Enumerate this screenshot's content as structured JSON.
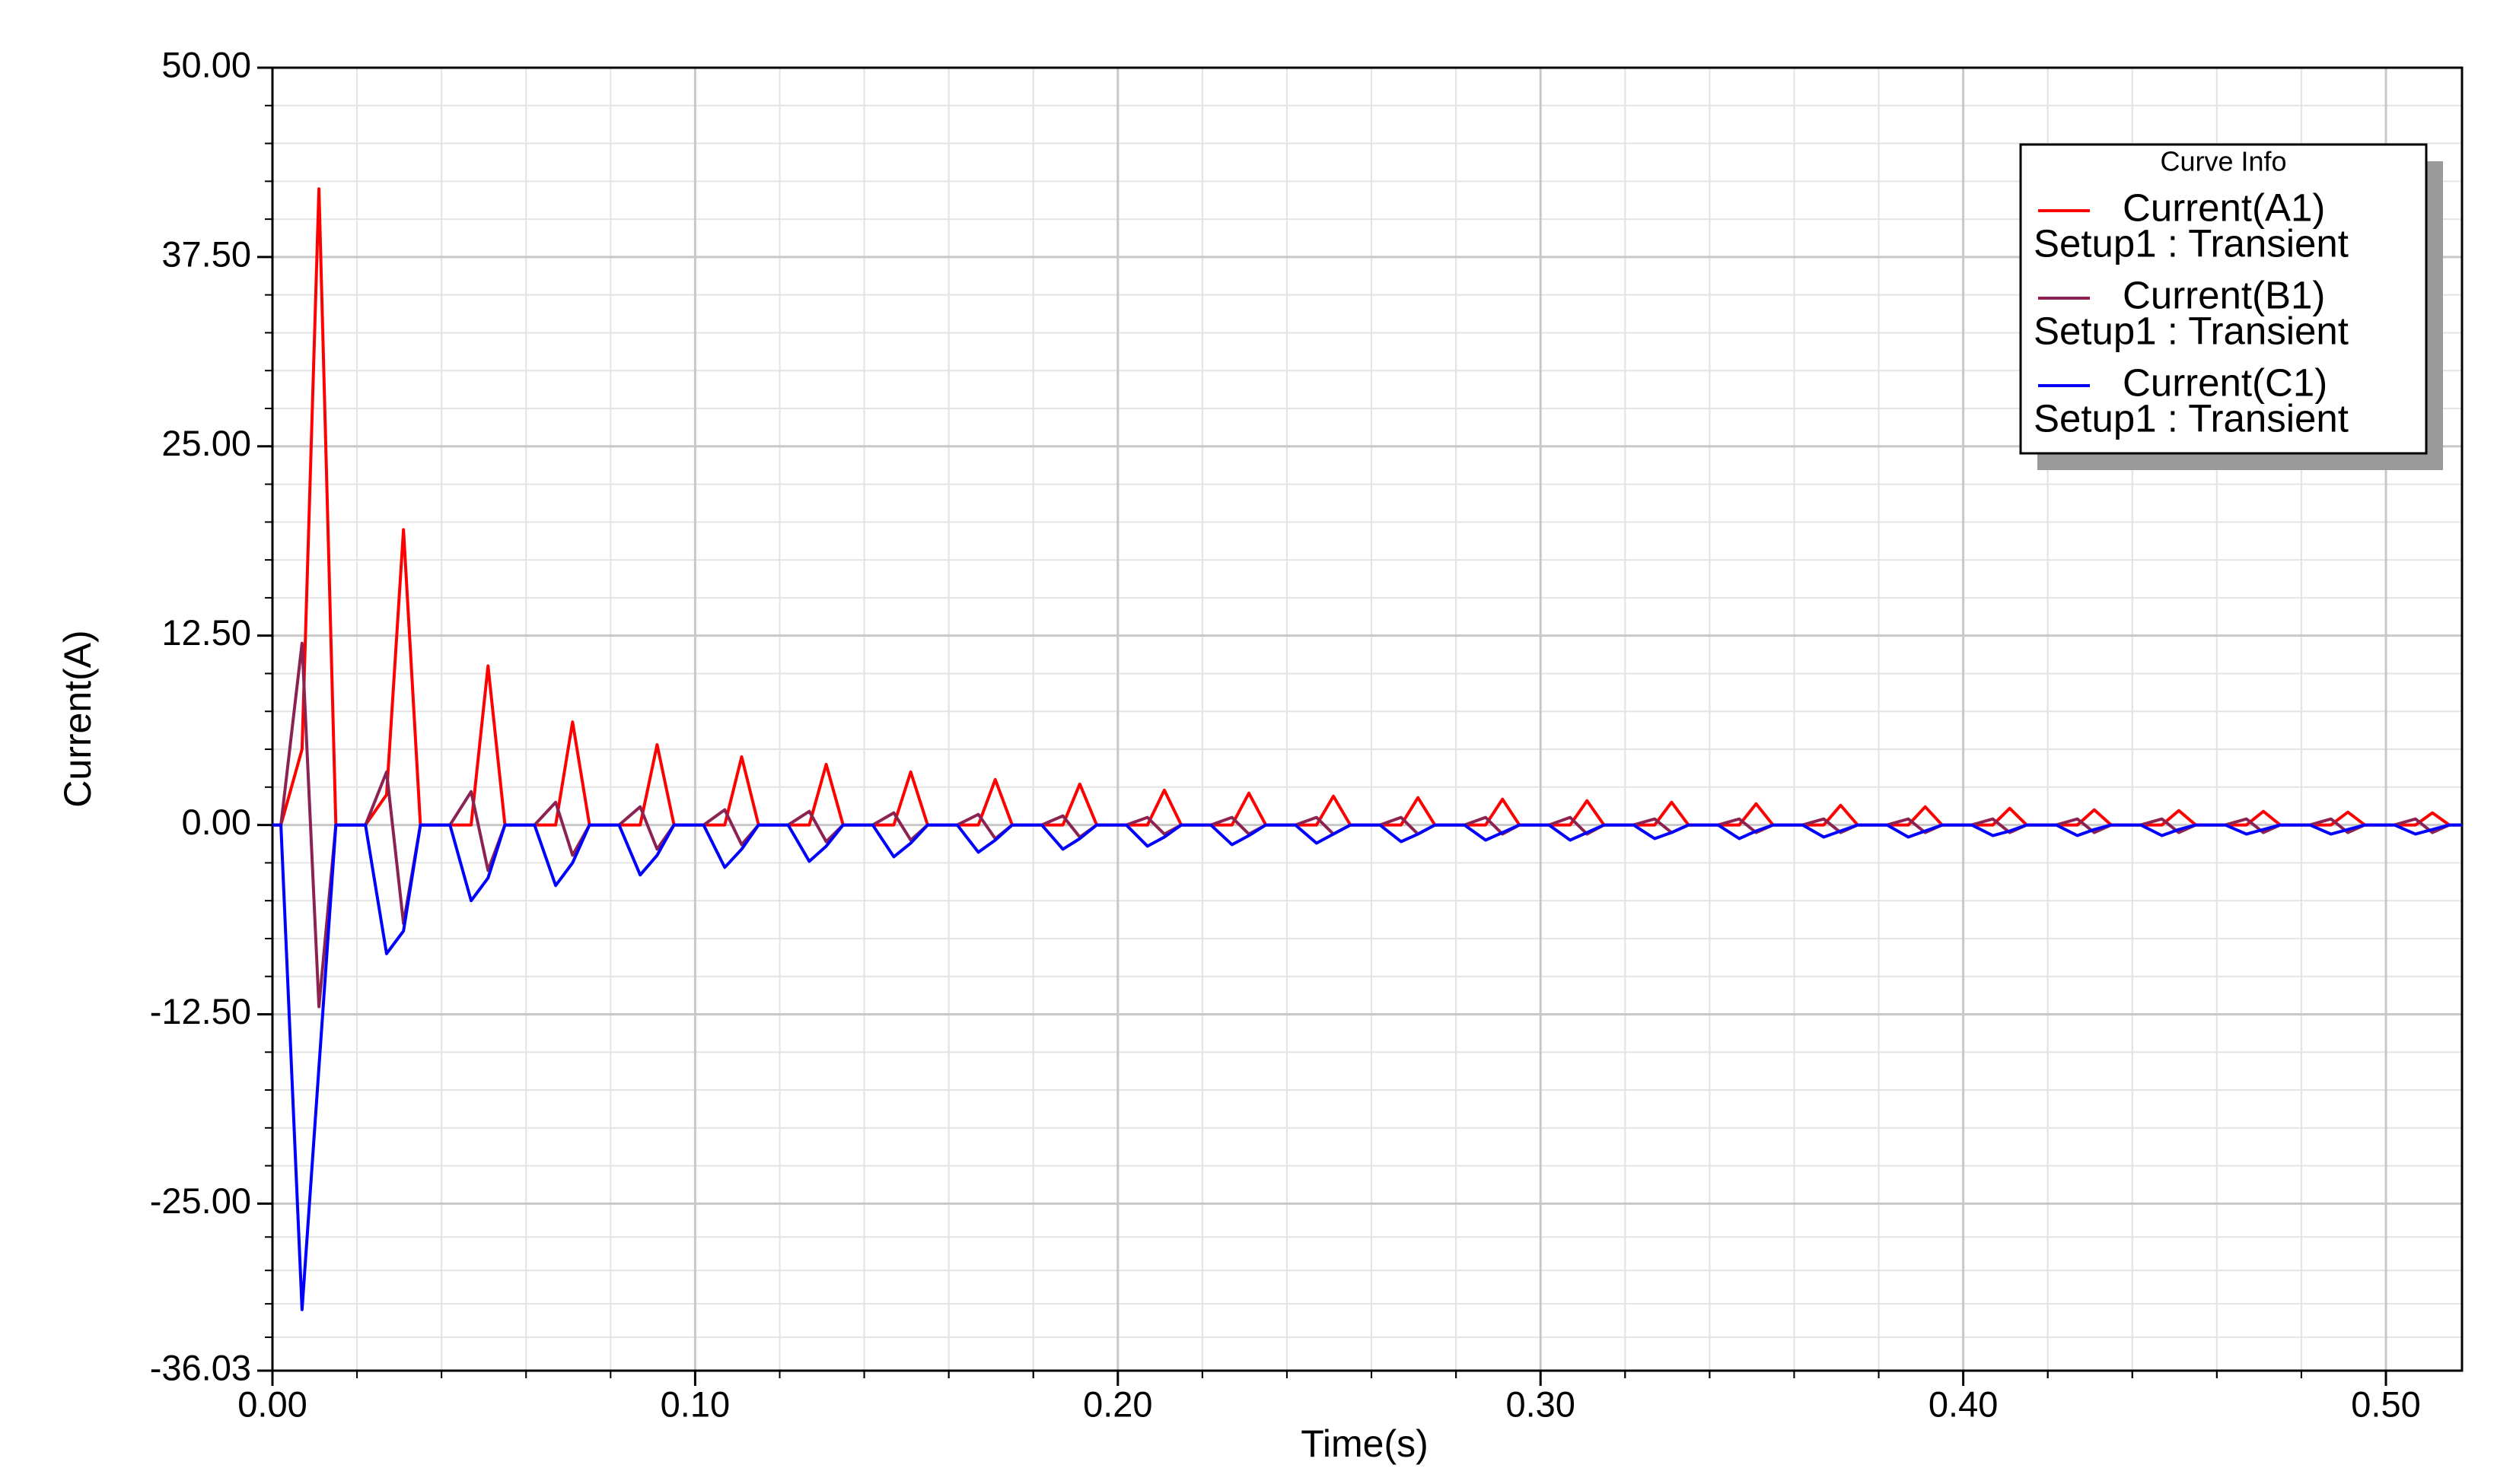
{
  "chart_data": {
    "type": "line",
    "x_label": "Time(s)",
    "y_label": "Current(A)",
    "legend_title": "Curve Info",
    "legend": "top-right",
    "grid": true,
    "xlim": [
      0,
      0.518
    ],
    "ylim": [
      -36.03,
      50
    ],
    "xticks": [
      {
        "value": 0,
        "label": "0.00"
      },
      {
        "value": 0.1,
        "label": "0.10"
      },
      {
        "value": 0.2,
        "label": "0.20"
      },
      {
        "value": 0.3,
        "label": "0.30"
      },
      {
        "value": 0.4,
        "label": "0.40"
      },
      {
        "value": 0.5,
        "label": "0.50"
      }
    ],
    "yticks": [
      {
        "value": -36.03,
        "label": "-36.03"
      },
      {
        "value": -25,
        "label": "-25.00"
      },
      {
        "value": -12.5,
        "label": "-12.50"
      },
      {
        "value": 0,
        "label": "0.00"
      },
      {
        "value": 12.5,
        "label": "12.50"
      },
      {
        "value": 25,
        "label": "25.00"
      },
      {
        "value": 37.5,
        "label": "37.50"
      },
      {
        "value": 50,
        "label": "50.00"
      }
    ],
    "x": [
      0,
      0.002,
      0.007,
      0.011,
      0.015,
      0.022,
      0.027,
      0.031,
      0.035,
      0.042,
      0.047,
      0.051,
      0.055,
      0.062,
      0.067,
      0.071,
      0.075,
      0.082,
      0.087,
      0.091,
      0.095,
      0.102,
      0.107,
      0.111,
      0.115,
      0.122,
      0.127,
      0.131,
      0.135,
      0.142,
      0.147,
      0.151,
      0.155,
      0.162,
      0.167,
      0.171,
      0.175,
      0.182,
      0.187,
      0.191,
      0.195,
      0.202,
      0.207,
      0.211,
      0.215,
      0.222,
      0.227,
      0.231,
      0.235,
      0.242,
      0.247,
      0.251,
      0.255,
      0.262,
      0.267,
      0.271,
      0.275,
      0.282,
      0.287,
      0.291,
      0.295,
      0.302,
      0.307,
      0.311,
      0.315,
      0.322,
      0.327,
      0.331,
      0.335,
      0.342,
      0.347,
      0.351,
      0.355,
      0.362,
      0.367,
      0.371,
      0.375,
      0.382,
      0.387,
      0.391,
      0.395,
      0.402,
      0.407,
      0.411,
      0.415,
      0.422,
      0.427,
      0.431,
      0.435,
      0.442,
      0.447,
      0.451,
      0.455,
      0.462,
      0.467,
      0.471,
      0.475,
      0.482,
      0.487,
      0.491,
      0.495,
      0.502,
      0.507,
      0.511,
      0.515,
      0.518
    ],
    "series": [
      {
        "name": "Current(A1)",
        "subtitle": "Setup1 : Transient",
        "color": "#ff0000",
        "values": [
          0,
          0,
          5,
          42,
          0,
          0,
          2,
          19.5,
          0,
          0,
          0,
          10.5,
          0,
          0,
          0,
          6.8,
          0,
          0,
          0,
          5.3,
          0,
          0,
          0,
          4.5,
          0,
          0,
          0,
          4.0,
          0,
          0,
          0,
          3.5,
          0,
          0,
          0,
          3.0,
          0,
          0,
          0,
          2.7,
          0,
          0,
          0,
          2.3,
          0,
          0,
          0,
          2.1,
          0,
          0,
          0,
          1.9,
          0,
          0,
          0,
          1.8,
          0,
          0,
          0,
          1.7,
          0,
          0,
          0,
          1.6,
          0,
          0,
          0,
          1.5,
          0,
          0,
          0,
          1.4,
          0,
          0,
          0,
          1.3,
          0,
          0,
          0,
          1.2,
          0,
          0,
          0,
          1.1,
          0,
          0,
          0,
          1.0,
          0,
          0,
          0,
          0.95,
          0,
          0,
          0,
          0.9,
          0,
          0,
          0,
          0.85,
          0,
          0,
          0,
          0.8,
          0,
          0
        ]
      },
      {
        "name": "Current(B1)",
        "subtitle": "Setup1 : Transient",
        "color": "#8b2252",
        "values": [
          0,
          0,
          12,
          -12,
          0,
          0,
          3.5,
          -6.5,
          0,
          0,
          2.2,
          -3,
          0,
          0,
          1.5,
          -2,
          0,
          0,
          1.2,
          -1.6,
          0,
          0,
          1,
          -1.3,
          0,
          0,
          0.9,
          -1.1,
          0,
          0,
          0.8,
          -1,
          0,
          0,
          0.7,
          -0.9,
          0,
          0,
          0.6,
          -0.8,
          0,
          0,
          0.5,
          -0.6,
          0,
          0,
          0.5,
          -0.6,
          0,
          0,
          0.5,
          -0.6,
          0,
          0,
          0.5,
          -0.6,
          0,
          0,
          0.5,
          -0.6,
          0,
          0,
          0.5,
          -0.6,
          0,
          0,
          0.4,
          -0.5,
          0,
          0,
          0.4,
          -0.5,
          0,
          0,
          0.4,
          -0.5,
          0,
          0,
          0.4,
          -0.5,
          0,
          0,
          0.4,
          -0.5,
          0,
          0,
          0.4,
          -0.5,
          0,
          0,
          0.4,
          -0.5,
          0,
          0,
          0.4,
          -0.5,
          0,
          0,
          0.4,
          -0.5,
          0,
          0,
          0.4,
          -0.5,
          0,
          0
        ]
      },
      {
        "name": "Current(C1)",
        "subtitle": "Setup1 : Transient",
        "color": "#0000ff",
        "values": [
          0,
          0,
          -32,
          -16,
          0,
          0,
          -8.5,
          -7,
          0,
          0,
          -5,
          -3.5,
          0,
          0,
          -4,
          -2.5,
          0,
          0,
          -3.3,
          -2,
          0,
          0,
          -2.8,
          -1.6,
          0,
          0,
          -2.4,
          -1.4,
          0,
          0,
          -2.1,
          -1.2,
          0,
          0,
          -1.8,
          -1.0,
          0,
          0,
          -1.6,
          -0.9,
          0,
          0,
          -1.4,
          -0.8,
          0,
          0,
          -1.3,
          -0.7,
          0,
          0,
          -1.2,
          -0.6,
          0,
          0,
          -1.1,
          -0.6,
          0,
          0,
          -1.0,
          -0.5,
          0,
          0,
          -1.0,
          -0.5,
          0,
          0,
          -0.9,
          -0.5,
          0,
          0,
          -0.9,
          -0.4,
          0,
          0,
          -0.8,
          -0.4,
          0,
          0,
          -0.8,
          -0.4,
          0,
          0,
          -0.7,
          -0.4,
          0,
          0,
          -0.7,
          -0.3,
          0,
          0,
          -0.7,
          -0.3,
          0,
          0,
          -0.6,
          -0.3,
          0,
          0,
          -0.6,
          -0.3,
          0,
          0,
          -0.6,
          -0.3,
          0,
          0
        ]
      }
    ]
  }
}
